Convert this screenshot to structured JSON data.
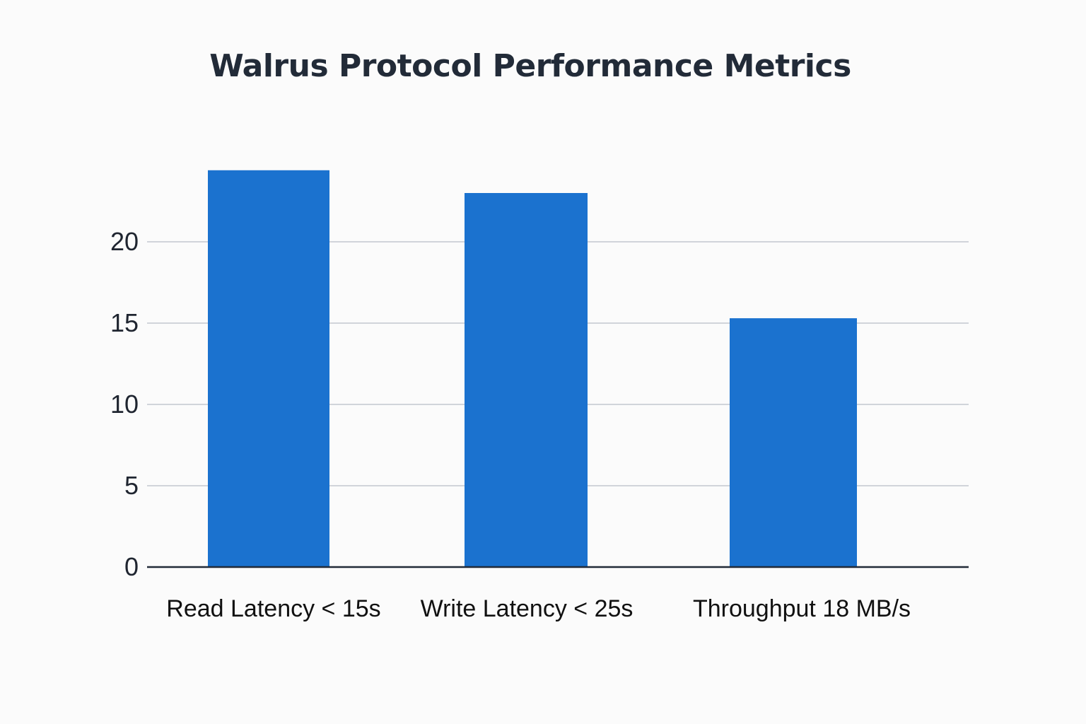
{
  "chart_data": {
    "type": "bar",
    "title": "Walrus Protocol Performance Metrics",
    "categories": [
      "Read Latency < 15s",
      "Write Latency < 25s",
      "Throughput 18 MB/s"
    ],
    "values": [
      24.4,
      23.0,
      15.3
    ],
    "xlabel": "",
    "ylabel": "",
    "ylim": [
      0,
      25
    ],
    "yticks": [
      0,
      5,
      10,
      15,
      20
    ],
    "grid": true,
    "legend": "none",
    "colors": {
      "bar": "#1b72cf",
      "grid": "#b8bcc6",
      "axis": "#222b38",
      "title": "#222b38"
    }
  }
}
